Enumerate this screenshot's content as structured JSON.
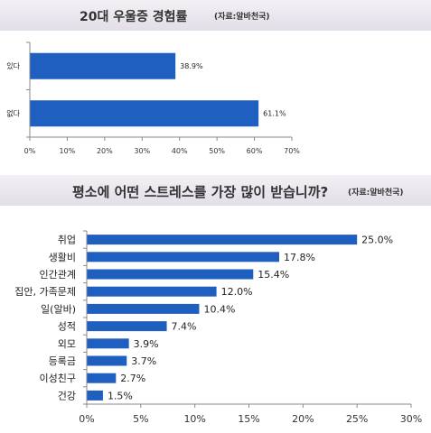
{
  "charts": [
    {
      "title": "20대 우울증 경험률",
      "source": "(자료:알바천국)"
    },
    {
      "title": "평소에 어떤 스트레스를 가장 많이 받습니까?",
      "source": "(자료:알바천국)"
    }
  ],
  "chart_data": [
    {
      "type": "bar",
      "orientation": "horizontal",
      "title": "20대 우울증 경험률",
      "categories": [
        "있다",
        "없다"
      ],
      "values": [
        38.9,
        61.1
      ],
      "value_labels": [
        "38.9%",
        "61.1%"
      ],
      "xlim": [
        0,
        70
      ],
      "ticks": [
        "0%",
        "10%",
        "20%",
        "30%",
        "40%",
        "50%",
        "60%",
        "70%"
      ],
      "grid": false,
      "colors": {
        "bar": "#1f5fbf"
      }
    },
    {
      "type": "bar",
      "orientation": "horizontal",
      "title": "평소에 어떤 스트레스를 가장 많이 받습니까?",
      "categories": [
        "취업",
        "생활비",
        "인간관계",
        "집안, 가족문제",
        "일(알바)",
        "성적",
        "외모",
        "등록금",
        "이성친구",
        "건강"
      ],
      "values": [
        25.0,
        17.8,
        15.4,
        12.0,
        10.4,
        7.4,
        3.9,
        3.7,
        2.7,
        1.5
      ],
      "value_labels": [
        "25.0%",
        "17.8%",
        "15.4%",
        "12.0%",
        "10.4%",
        "7.4%",
        "3.9%",
        "3.7%",
        "2.7%",
        "1.5%"
      ],
      "xlim": [
        0,
        30
      ],
      "ticks": [
        "0%",
        "5%",
        "10%",
        "15%",
        "20%",
        "25%",
        "30%"
      ],
      "grid": false,
      "colors": {
        "bar": "#1f5fbf"
      }
    }
  ]
}
